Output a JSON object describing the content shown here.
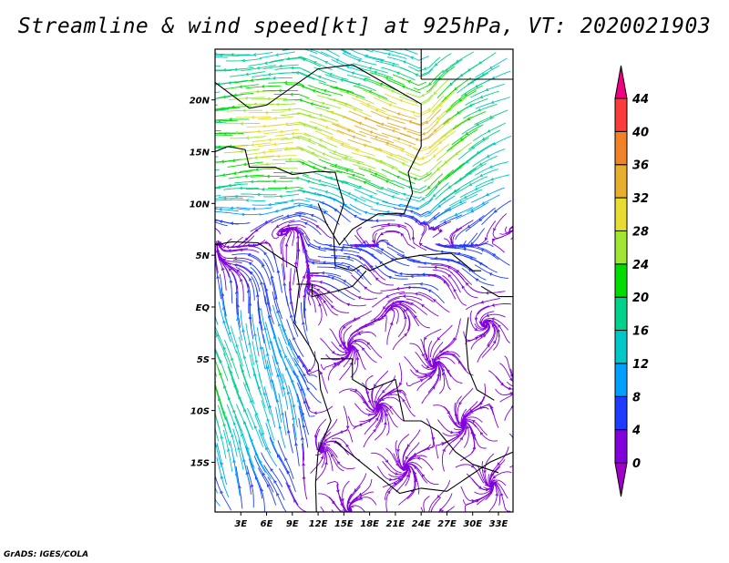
{
  "title": "Streamline & wind speed[kt] at 925hPa, VT: 2020021903",
  "footer": "GrADS: IGES/COLA",
  "map": {
    "lon_range": [
      0,
      34.7
    ],
    "lat_range": [
      -19.8,
      24.9
    ],
    "lat_ticks": [
      {
        "label": "20N",
        "lat": 20
      },
      {
        "label": "15N",
        "lat": 15
      },
      {
        "label": "10N",
        "lat": 10
      },
      {
        "label": "5N",
        "lat": 5
      },
      {
        "label": "EQ",
        "lat": 0
      },
      {
        "label": "5S",
        "lat": -5
      },
      {
        "label": "10S",
        "lat": -10
      },
      {
        "label": "15S",
        "lat": -15
      }
    ],
    "lon_ticks": [
      {
        "label": "3E",
        "lon": 3
      },
      {
        "label": "6E",
        "lon": 6
      },
      {
        "label": "9E",
        "lon": 9
      },
      {
        "label": "12E",
        "lon": 12
      },
      {
        "label": "15E",
        "lon": 15
      },
      {
        "label": "18E",
        "lon": 18
      },
      {
        "label": "21E",
        "lon": 21
      },
      {
        "label": "24E",
        "lon": 24
      },
      {
        "label": "27E",
        "lon": 27
      },
      {
        "label": "30E",
        "lon": 30
      },
      {
        "label": "33E",
        "lon": 33
      }
    ]
  },
  "colorbar": {
    "units": "kt",
    "levels": [
      "0",
      "4",
      "8",
      "12",
      "16",
      "20",
      "24",
      "28",
      "32",
      "36",
      "40",
      "44"
    ],
    "colors": [
      "#8200dc",
      "#1e3cff",
      "#00a0ff",
      "#00c8c8",
      "#00d28c",
      "#00dc00",
      "#a0e632",
      "#e6dc32",
      "#e6af2d",
      "#f08228",
      "#fa3c3c"
    ],
    "under_color": "#a000c8",
    "over_color": "#f00082"
  }
}
